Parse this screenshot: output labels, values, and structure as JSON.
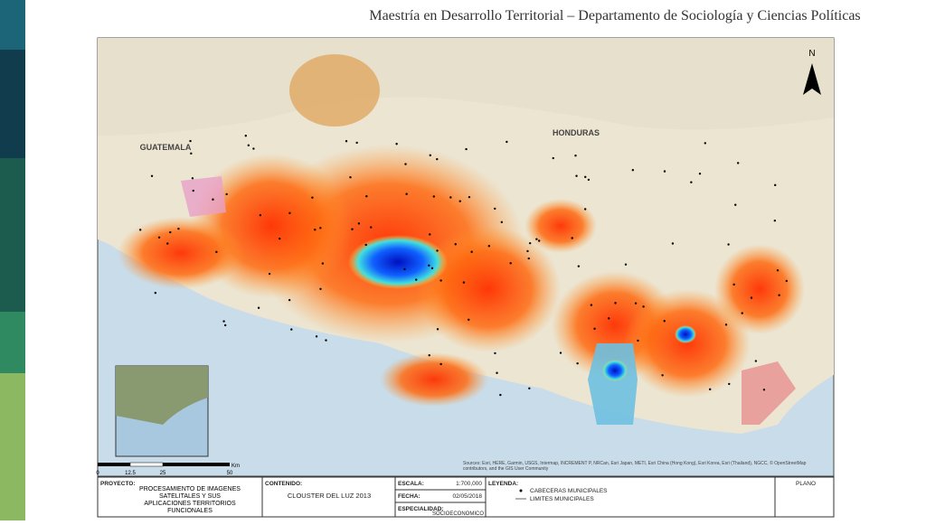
{
  "header": {
    "title": "Maestría en Desarrollo Territorial – Departamento de Sociología y Ciencias Políticas"
  },
  "map": {
    "labels": {
      "guatemala": "GUATEMALA",
      "honduras": "HONDURAS"
    },
    "north": "N",
    "scale_bar": {
      "ticks": [
        "0",
        "12.5",
        "25",
        "50"
      ],
      "unit": "Km"
    },
    "attribution": "Sources: Esri, HERE, Garmin, USGS, Intermap, INCREMENT P, NRCan, Esri Japan, METI, Esri China (Hong Kong), Esri Korea, Esri (Thailand), NGCC, © OpenStreetMap contributors, and the GIS User Community"
  },
  "title_block": {
    "project": {
      "label": "PROYECTO:",
      "text": "PROCESAMIENTO DE IMÁGENES SATELITALES Y SUS APLICACIONES TERRITORIOS FUNCIONALES"
    },
    "content": {
      "label": "CONTENIDO:",
      "text": "CLOUSTER DEL LUZ 2013"
    },
    "scale": {
      "label": "ESCALA:",
      "text": "1:700,000"
    },
    "date": {
      "label": "FECHA:",
      "text": "02/05/2018"
    },
    "specialty": {
      "label": "ESPECIALIDAD:",
      "text": "SOCIOECONOMICO"
    },
    "legend": {
      "label": "LEYENDA:",
      "items": [
        "CABECERAS MUNICIPALES",
        "LIMITES MUNICIPALES"
      ]
    },
    "sheet": {
      "label": "PLANO"
    }
  }
}
